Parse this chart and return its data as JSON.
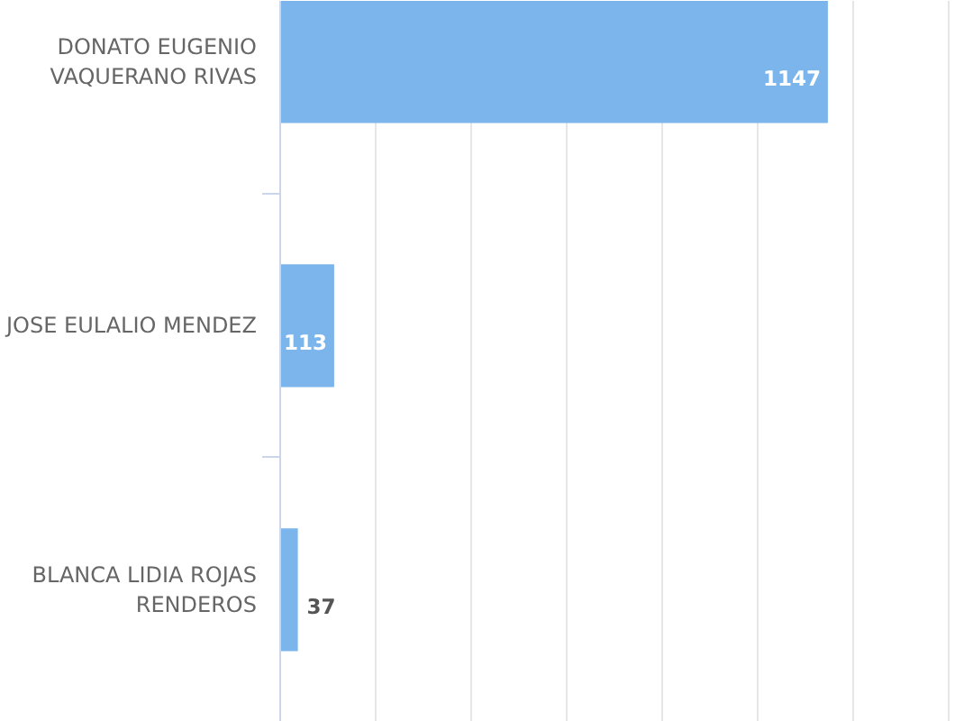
{
  "chart_data": {
    "type": "bar",
    "orientation": "horizontal",
    "categories": [
      "DONATO EUGENIO VAQUERANO RIVAS",
      "JOSE EULALIO MENDEZ",
      "BLANCA LIDIA ROJAS RENDEROS"
    ],
    "values": [
      1147,
      113,
      37
    ],
    "color": "#7cb5ec",
    "xticks": [
      {
        "value": 0,
        "label": null
      },
      {
        "value": 200,
        "label": null
      },
      {
        "value": 400,
        "label": null
      },
      {
        "value": 600,
        "label": null
      },
      {
        "value": 800,
        "label": null
      },
      {
        "value": 1000,
        "label": null
      },
      {
        "value": 1200,
        "label": null
      },
      {
        "value": 1400,
        "label": null
      }
    ],
    "grid": "x",
    "data_labels": true,
    "tick_labels": "y"
  }
}
